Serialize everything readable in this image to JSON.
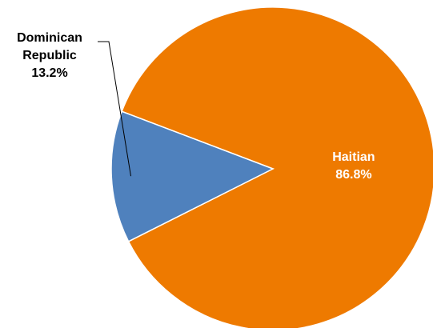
{
  "chart_data": {
    "type": "pie",
    "title": "",
    "slices": [
      {
        "label_lines": [
          "Haitian",
          "86.8%"
        ],
        "value": 86.8,
        "color": "#EE7A00",
        "label_color": "#FFFFFF"
      },
      {
        "label_lines": [
          "Dominican",
          "Republic",
          "13.2%"
        ],
        "value": 13.2,
        "color": "#4F81BD",
        "label_color": "#000000"
      }
    ],
    "start_angle_deg": -69.2,
    "direction": "clockwise",
    "stroke": "#FFFFFF",
    "legend": "none"
  }
}
